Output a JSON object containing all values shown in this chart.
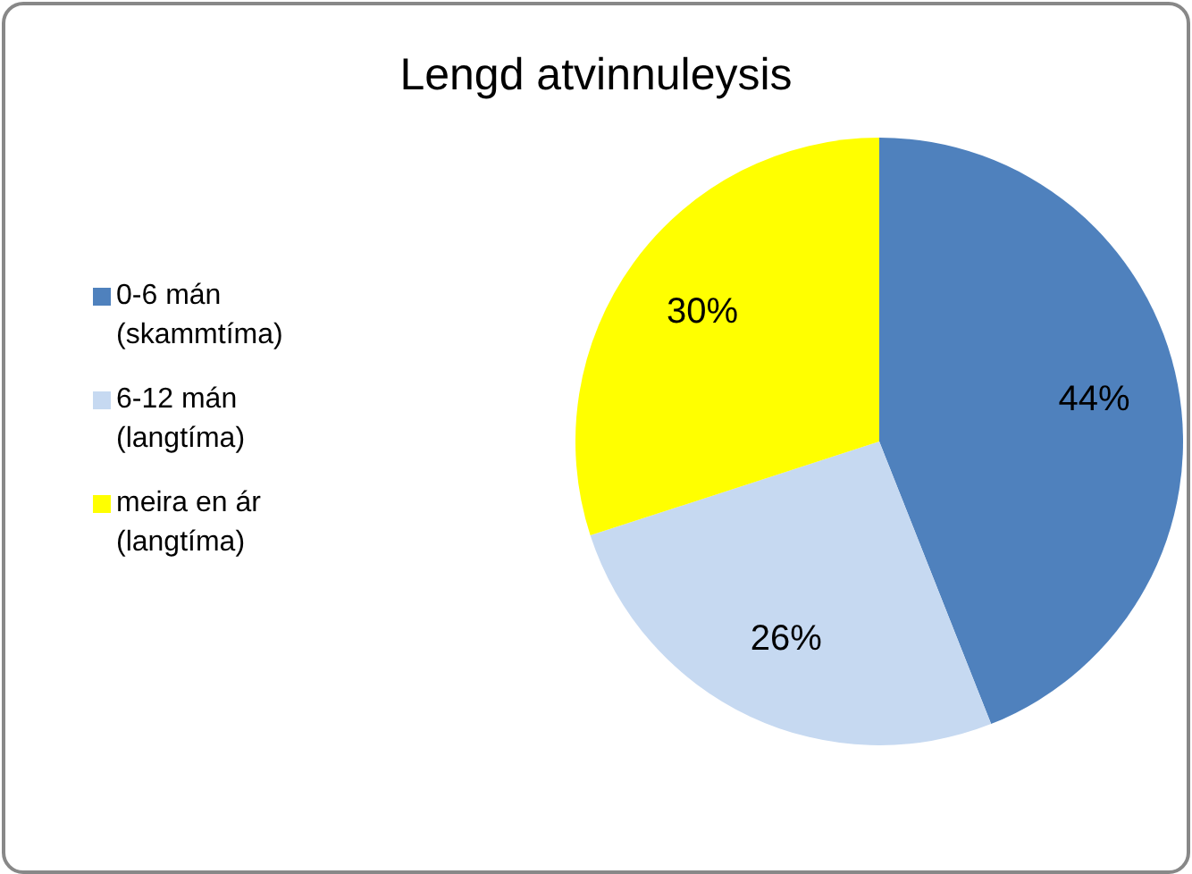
{
  "chart_data": {
    "type": "pie",
    "title": "Lengd atvinnuleysis",
    "categories": [
      "0-6 mán (skammtíma)",
      "6-12 mán (langtíma)",
      "meira en ár (langtíma)"
    ],
    "values": [
      44,
      26,
      30
    ],
    "colors": [
      "#4f81bd",
      "#c6d9f1",
      "#ffff00"
    ],
    "value_labels": [
      "44%",
      "26%",
      "30%"
    ],
    "legend": "left"
  }
}
